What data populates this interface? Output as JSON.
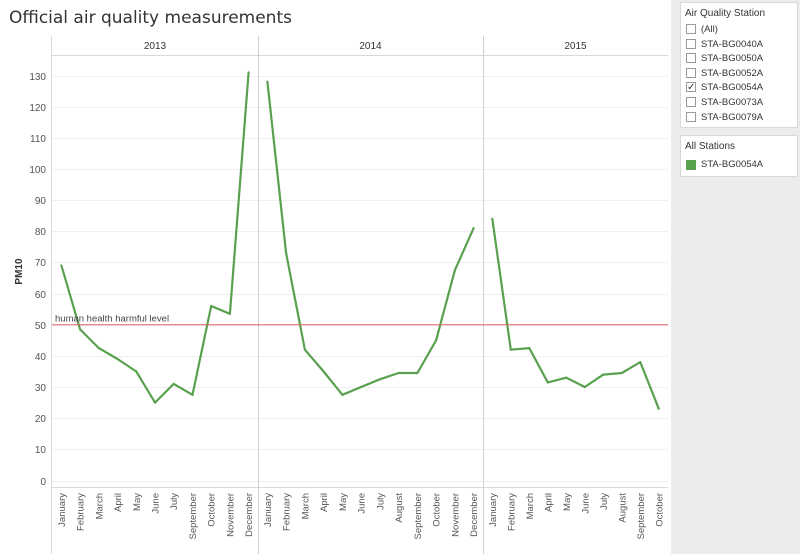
{
  "title": "Official air quality measurements",
  "filter": {
    "title": "Air Quality Station",
    "options": [
      {
        "label": "(All)",
        "checked": false
      },
      {
        "label": "STA-BG0040A",
        "checked": false
      },
      {
        "label": "STA-BG0050A",
        "checked": false
      },
      {
        "label": "STA-BG0052A",
        "checked": false
      },
      {
        "label": "STA-BG0054A",
        "checked": true
      },
      {
        "label": "STA-BG0073A",
        "checked": false
      },
      {
        "label": "STA-BG0079A",
        "checked": false
      }
    ],
    "check_glyph": "✓"
  },
  "legend": {
    "title": "All Stations",
    "items": [
      {
        "label": "STA-BG0054A",
        "color": "#59a14f"
      }
    ]
  },
  "chart_data": {
    "type": "line",
    "ylabel": "PM10",
    "ylim": [
      0,
      130
    ],
    "yticks": [
      0,
      10,
      20,
      30,
      40,
      50,
      60,
      70,
      80,
      90,
      100,
      110,
      120,
      130
    ],
    "grid": true,
    "line_color": "#59a14f",
    "reference_line": {
      "value": 50,
      "label": "human health harmful level",
      "color": "#e06666"
    },
    "panels": [
      {
        "year": "2013",
        "months": [
          "January",
          "February",
          "March",
          "April",
          "May",
          "June",
          "July",
          "September",
          "October",
          "November",
          "December"
        ],
        "values": [
          69,
          48.5,
          42.5,
          39,
          35,
          25,
          31,
          27.5,
          56,
          53.5,
          131
        ]
      },
      {
        "year": "2014",
        "months": [
          "January",
          "February",
          "March",
          "April",
          "May",
          "June",
          "July",
          "August",
          "September",
          "October",
          "November",
          "December"
        ],
        "values": [
          128,
          73,
          42,
          35,
          27.5,
          30,
          32.5,
          34.5,
          34.5,
          45,
          67.5,
          81
        ]
      },
      {
        "year": "2015",
        "months": [
          "January",
          "February",
          "March",
          "April",
          "May",
          "June",
          "July",
          "August",
          "September",
          "October"
        ],
        "values": [
          84,
          42,
          42.5,
          31.5,
          33,
          30,
          34,
          34.5,
          38,
          23
        ]
      }
    ]
  }
}
